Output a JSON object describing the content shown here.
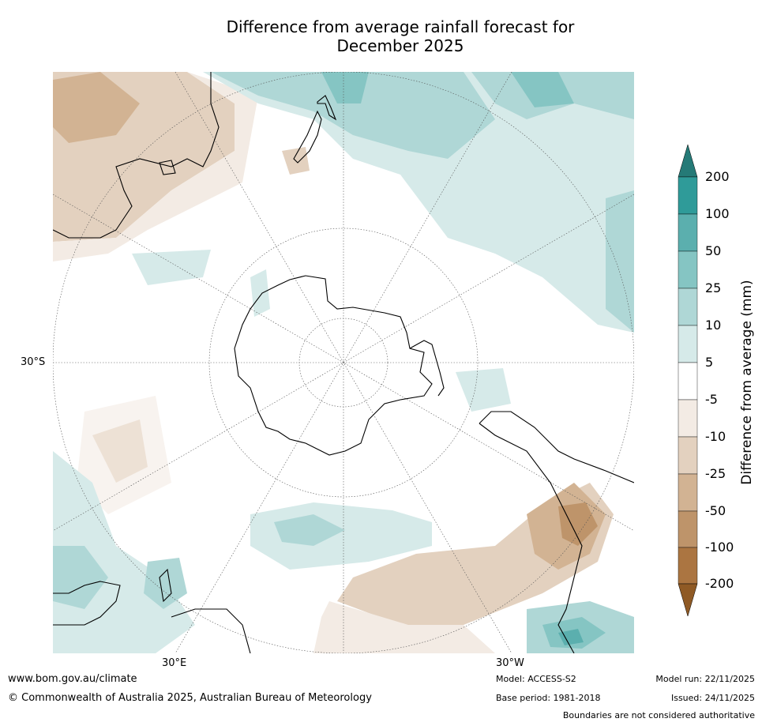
{
  "title": {
    "line1": "Difference from average rainfall forecast for",
    "line2": "December 2025"
  },
  "axis_labels": {
    "lat": "30°S",
    "lon_east": "30°E",
    "lon_west": "30°W"
  },
  "colorbar": {
    "label": "Difference from average (mm)",
    "ticks": [
      "200",
      "100",
      "50",
      "25",
      "10",
      "5",
      "-5",
      "-10",
      "-25",
      "-50",
      "-100",
      "-200"
    ],
    "colors": {
      "over": "#257a77",
      "wet_200": "#2f9b99",
      "wet_100": "#5bafae",
      "wet_50": "#85c5c3",
      "wet_25": "#afd7d6",
      "wet_10": "#d6eae9",
      "neutral": "#ffffff",
      "dry_5": "#f3ebe4",
      "dry_10": "#e3d1bf",
      "dry_25": "#d2b393",
      "dry_50": "#be946a",
      "dry_100": "#ab7541",
      "under": "#8f5a25"
    }
  },
  "footer": {
    "website": "www.bom.gov.au/climate",
    "copyright": "© Commonwealth of Australia 2025, Australian Bureau of Meteorology",
    "model": "Model: ACCESS-S2",
    "base_period": "Base period: 1981-2018",
    "model_run": "Model run: 22/11/2025",
    "issued": "Issued: 24/11/2025",
    "disclaimer": "Boundaries are not considered authoritative"
  }
}
